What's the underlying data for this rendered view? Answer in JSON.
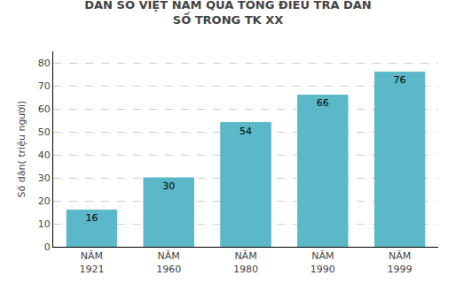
{
  "chart_data": {
    "type": "bar",
    "title": "DÂN SỐ VIỆT NAM QUA TỔNG ĐIỀU TRA DÂN\nSỐ TRONG TK XX",
    "categories": [
      "NĂM\n1921",
      "NĂM\n1960",
      "NĂM\n1980",
      "NĂM\n1990",
      "NĂM\n1999"
    ],
    "values": [
      16,
      30,
      54,
      66,
      76
    ],
    "color": "#5BB8C8",
    "y_label": "Số dân( triệu người)",
    "ylim": [
      0,
      85
    ],
    "yticks": [
      0,
      10,
      20,
      30,
      40,
      50,
      60,
      70,
      80
    ],
    "grid": true,
    "data_labels": true
  }
}
